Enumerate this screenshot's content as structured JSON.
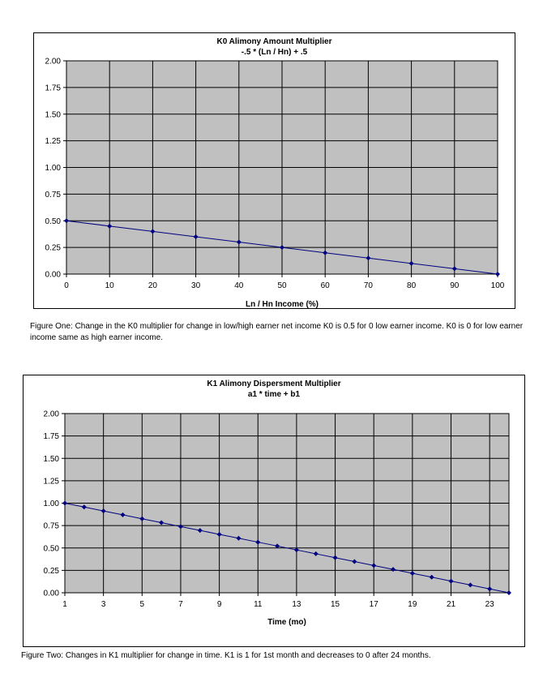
{
  "chart_data": [
    {
      "type": "line",
      "title": "K0 Alimony Amount Multiplier",
      "subtitle": "-.5 * (Ln / Hn) + .5",
      "xlabel": "Ln / Hn Income (%)",
      "ylabel": "",
      "x": [
        0,
        10,
        20,
        30,
        40,
        50,
        60,
        70,
        80,
        90,
        100
      ],
      "series": [
        {
          "values": [
            0.5,
            0.45,
            0.4,
            0.35,
            0.3,
            0.25,
            0.2,
            0.15,
            0.1,
            0.05,
            0.0
          ]
        }
      ],
      "xlim": [
        0,
        100
      ],
      "ylim": [
        0,
        2
      ],
      "x_ticks": [
        "0",
        "10",
        "20",
        "30",
        "40",
        "50",
        "60",
        "70",
        "80",
        "90",
        "100"
      ],
      "y_ticks": [
        "0.00",
        "0.25",
        "0.50",
        "0.75",
        "1.00",
        "1.25",
        "1.50",
        "1.75",
        "2.00"
      ],
      "grid": true,
      "plot_background": "#c0c0c0",
      "line_color": "#000080"
    },
    {
      "type": "line",
      "title": "K1 Alimony Dispersment Multiplier",
      "subtitle": "a1 * time + b1",
      "xlabel": "Time (mo)",
      "ylabel": "",
      "x": [
        1,
        2,
        3,
        4,
        5,
        6,
        7,
        8,
        9,
        10,
        11,
        12,
        13,
        14,
        15,
        16,
        17,
        18,
        19,
        20,
        21,
        22,
        23,
        24
      ],
      "series": [
        {
          "values": [
            1.0,
            0.957,
            0.913,
            0.87,
            0.826,
            0.783,
            0.739,
            0.696,
            0.652,
            0.609,
            0.565,
            0.522,
            0.478,
            0.435,
            0.391,
            0.348,
            0.304,
            0.261,
            0.217,
            0.174,
            0.13,
            0.087,
            0.043,
            0.0
          ]
        }
      ],
      "xlim": [
        1,
        24
      ],
      "ylim": [
        0,
        2
      ],
      "x_ticks": [
        "1",
        "3",
        "5",
        "7",
        "9",
        "11",
        "13",
        "15",
        "17",
        "19",
        "21",
        "23"
      ],
      "y_ticks": [
        "0.00",
        "0.25",
        "0.50",
        "0.75",
        "1.00",
        "1.25",
        "1.50",
        "1.75",
        "2.00"
      ],
      "grid": true,
      "plot_background": "#c0c0c0",
      "line_color": "#000080"
    }
  ],
  "captions": {
    "figure_one": "Figure One:  Change in the K0 multiplier for change in low/high earner net income   K0 is 0.5 for 0 low earner income.  K0 is 0 for low earner income same as high earner income.",
    "figure_two": "Figure Two: Changes in K1 multiplier for change in time.  K1 is 1 for 1st month and decreases to 0 after 24 months."
  }
}
